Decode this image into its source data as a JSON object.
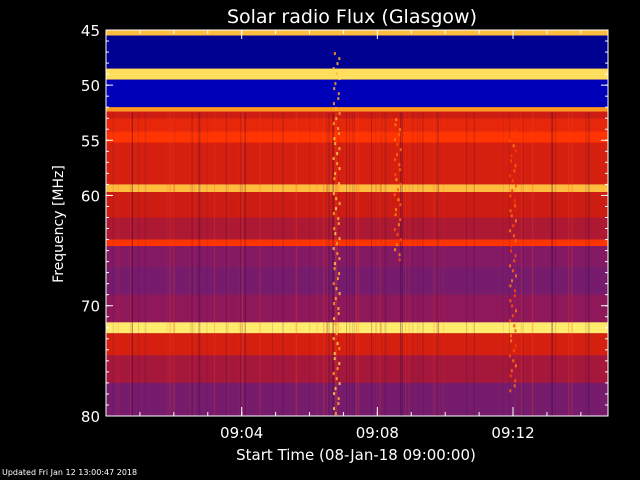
{
  "footer": {
    "updated": "Updated Fri Jan 12 13:00:47 2018"
  },
  "chart_data": {
    "type": "heatmap",
    "title": "Solar radio Flux (Glasgow)",
    "xlabel": "Start Time (08-Jan-18 09:00:00)",
    "ylabel": "Frequency [MHz]",
    "x_time_range_minutes": [
      0.0,
      14.8
    ],
    "ylim": [
      45,
      80
    ],
    "y_inverted": true,
    "yticks": [
      45,
      50,
      55,
      60,
      70,
      80
    ],
    "yticklabels": [
      "45",
      "50",
      "55",
      "60",
      "70",
      "80"
    ],
    "xticks_minutes": [
      4,
      8,
      12
    ],
    "xticklabels": [
      "09:04",
      "09:08",
      "09:12"
    ],
    "colormap": [
      "#000040",
      "#0000d0",
      "#2a2aa0",
      "#8a1860",
      "#c01818",
      "#ff3000",
      "#ffa020",
      "#ffff80"
    ],
    "frequency_bands": [
      {
        "mhz": [
          45.0,
          45.5
        ],
        "level": 0.9
      },
      {
        "mhz": [
          45.5,
          48.5
        ],
        "level": 0.08
      },
      {
        "mhz": [
          48.5,
          49.5
        ],
        "level": 0.95
      },
      {
        "mhz": [
          49.5,
          52.0
        ],
        "level": 0.12
      },
      {
        "mhz": [
          52.0,
          52.4
        ],
        "level": 0.85
      },
      {
        "mhz": [
          52.4,
          53.0
        ],
        "level": 0.6
      },
      {
        "mhz": [
          53.0,
          54.2
        ],
        "level": 0.66
      },
      {
        "mhz": [
          54.2,
          55.2
        ],
        "level": 0.72
      },
      {
        "mhz": [
          55.2,
          59.0
        ],
        "level": 0.62
      },
      {
        "mhz": [
          59.0,
          59.7
        ],
        "level": 0.9
      },
      {
        "mhz": [
          59.7,
          62.0
        ],
        "level": 0.6
      },
      {
        "mhz": [
          62.0,
          64.0
        ],
        "level": 0.52
      },
      {
        "mhz": [
          64.0,
          64.6
        ],
        "level": 0.72
      },
      {
        "mhz": [
          64.6,
          66.5
        ],
        "level": 0.42
      },
      {
        "mhz": [
          66.5,
          69.0
        ],
        "level": 0.4
      },
      {
        "mhz": [
          69.0,
          71.5
        ],
        "level": 0.44
      },
      {
        "mhz": [
          71.5,
          72.5
        ],
        "level": 0.97
      },
      {
        "mhz": [
          72.5,
          74.5
        ],
        "level": 0.62
      },
      {
        "mhz": [
          74.5,
          77.0
        ],
        "level": 0.5
      },
      {
        "mhz": [
          77.0,
          80.0
        ],
        "level": 0.4
      }
    ],
    "burst_features": [
      {
        "minute": 6.8,
        "mhz": [
          47.0,
          80.0
        ],
        "level": 0.85
      },
      {
        "minute": 8.6,
        "mhz": [
          53.0,
          66.0
        ],
        "level": 0.75
      },
      {
        "minute": 12.0,
        "mhz": [
          54.0,
          78.0
        ],
        "level": 0.72
      }
    ]
  }
}
